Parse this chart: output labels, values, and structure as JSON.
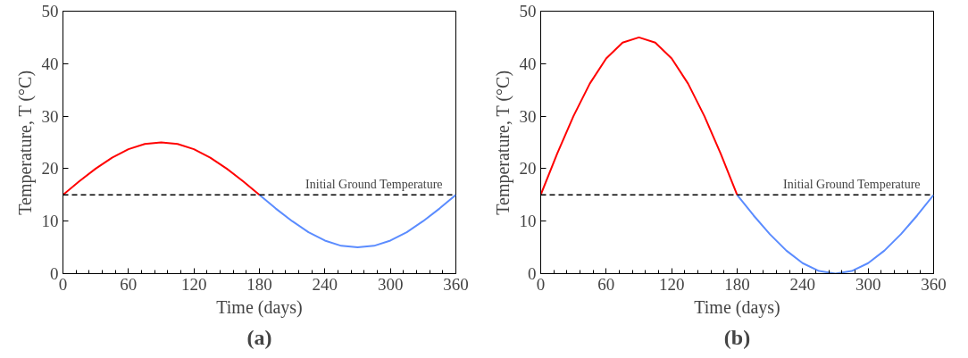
{
  "chart_data": [
    {
      "type": "line",
      "xlabel": "Time (days)",
      "ylabel": "Temperature, T (°C)",
      "xlim": [
        0,
        360
      ],
      "ylim": [
        0,
        50
      ],
      "xticks": [
        0,
        60,
        120,
        180,
        240,
        300,
        360
      ],
      "yticks": [
        0,
        10,
        20,
        30,
        40,
        50
      ],
      "grid": false,
      "line_style": "solid",
      "annotations": [
        "(a)"
      ],
      "ref_lines": [
        {
          "axis": "y",
          "value": 15,
          "label": "Initial Ground Temperature",
          "color": "#000000",
          "line_style": "dashed"
        }
      ],
      "series": [
        {
          "color": "#ff0000",
          "x": [
            0,
            15,
            30,
            45,
            60,
            75,
            90,
            105,
            120,
            135,
            150,
            165,
            180
          ],
          "values": [
            15,
            17.6,
            20,
            22.1,
            23.7,
            24.7,
            25,
            24.7,
            23.7,
            22.1,
            20,
            17.6,
            15
          ]
        },
        {
          "color": "#5b8cff",
          "x": [
            180,
            195,
            210,
            225,
            240,
            255,
            270,
            285,
            300,
            315,
            330,
            345,
            360
          ],
          "values": [
            15,
            12.4,
            10,
            7.9,
            6.3,
            5.3,
            5,
            5.3,
            6.3,
            7.9,
            10,
            12.4,
            15
          ]
        }
      ]
    },
    {
      "type": "line",
      "xlabel": "Time (days)",
      "ylabel": "Temperature, T (°C)",
      "xlim": [
        0,
        360
      ],
      "ylim": [
        0,
        50
      ],
      "xticks": [
        0,
        60,
        120,
        180,
        240,
        300,
        360
      ],
      "yticks": [
        0,
        10,
        20,
        30,
        40,
        50
      ],
      "grid": false,
      "line_style": "solid",
      "annotations": [
        "(b)"
      ],
      "ref_lines": [
        {
          "axis": "y",
          "value": 15,
          "label": "Initial Ground Temperature",
          "color": "#000000",
          "line_style": "dashed"
        }
      ],
      "series": [
        {
          "color": "#ff0000",
          "x": [
            0,
            15,
            30,
            45,
            60,
            75,
            90,
            105,
            120,
            135,
            150,
            165,
            180
          ],
          "values": [
            15,
            22.8,
            30,
            36.2,
            41,
            44,
            45,
            44,
            41,
            36.2,
            30,
            22.8,
            15
          ]
        },
        {
          "color": "#5b8cff",
          "x": [
            180,
            195,
            210,
            225,
            240,
            255,
            270,
            285,
            300,
            315,
            330,
            345,
            360
          ],
          "values": [
            15,
            11.1,
            7.5,
            4.4,
            2,
            0.5,
            0,
            0.5,
            2,
            4.4,
            7.5,
            11.1,
            15
          ]
        }
      ]
    }
  ]
}
